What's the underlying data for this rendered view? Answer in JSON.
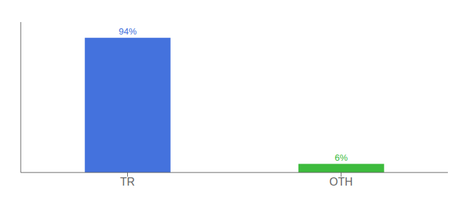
{
  "chart_data": {
    "type": "bar",
    "categories": [
      "TR",
      "OTH"
    ],
    "values": [
      94,
      6
    ],
    "value_labels": [
      "94%",
      "6%"
    ],
    "colors": [
      "#4472dd",
      "#3dbb3d"
    ],
    "ylim": [
      0,
      105
    ],
    "data_labels": true,
    "tick_labels": "x",
    "grid": false
  }
}
